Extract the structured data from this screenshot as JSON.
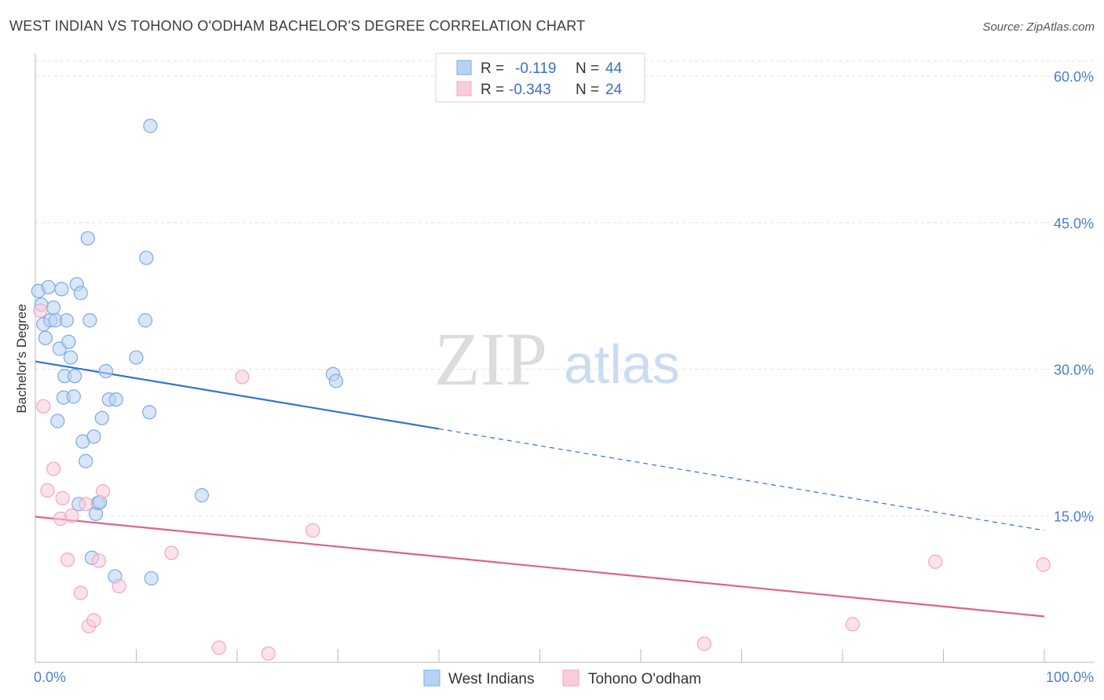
{
  "chart_data": {
    "type": "scatter",
    "title": "WEST INDIAN VS TOHONO O'ODHAM BACHELOR'S DEGREE CORRELATION CHART",
    "source": "Source: ZipAtlas.com",
    "ylabel": "Bachelor's Degree",
    "xlim": [
      0,
      100
    ],
    "ylim": [
      0,
      62
    ],
    "x_tick_labels": [
      {
        "value": 0,
        "label": "0.0%"
      },
      {
        "value": 100,
        "label": "100.0%"
      }
    ],
    "y_tick_labels": [
      {
        "value": 15,
        "label": "15.0%"
      },
      {
        "value": 30,
        "label": "30.0%"
      },
      {
        "value": 45,
        "label": "45.0%"
      },
      {
        "value": 60,
        "label": "60.0%"
      }
    ],
    "grid": true,
    "legend": {
      "placement": "top-center",
      "rows": [
        {
          "r_label": "R =",
          "r_value": "-0.119",
          "n_label": "N =",
          "n_value": "44"
        },
        {
          "r_label": "R =",
          "r_value": "-0.343",
          "n_label": "N =",
          "n_value": "24"
        }
      ]
    },
    "watermark": {
      "zip": "ZIP",
      "atlas": "atlas"
    },
    "series": [
      {
        "name": "West Indians",
        "color": "#7aaae8",
        "fill": "#b9d2f3",
        "trend": {
          "x0": 0,
          "y0": 30.8,
          "x1": 40,
          "y1": 23.9,
          "x_dash_end": 100,
          "y_dash_end": 13.5,
          "color": "#2f73d6"
        },
        "points": [
          [
            0.3,
            38.0
          ],
          [
            0.6,
            36.6
          ],
          [
            0.8,
            34.6
          ],
          [
            1.0,
            33.2
          ],
          [
            1.3,
            38.4
          ],
          [
            1.5,
            35.0
          ],
          [
            1.8,
            36.3
          ],
          [
            2.0,
            35.0
          ],
          [
            2.2,
            24.7
          ],
          [
            2.4,
            32.1
          ],
          [
            2.6,
            38.2
          ],
          [
            2.8,
            27.1
          ],
          [
            2.9,
            29.3
          ],
          [
            3.1,
            35.0
          ],
          [
            3.3,
            32.8
          ],
          [
            3.5,
            31.2
          ],
          [
            3.8,
            27.2
          ],
          [
            3.9,
            29.3
          ],
          [
            4.1,
            38.7
          ],
          [
            4.3,
            16.2
          ],
          [
            4.5,
            37.8
          ],
          [
            4.7,
            22.6
          ],
          [
            5.0,
            20.6
          ],
          [
            5.2,
            43.4
          ],
          [
            5.4,
            35.0
          ],
          [
            5.6,
            10.7
          ],
          [
            5.8,
            23.1
          ],
          [
            6.0,
            15.2
          ],
          [
            6.2,
            16.3
          ],
          [
            6.4,
            16.4
          ],
          [
            6.6,
            25.0
          ],
          [
            7.0,
            29.8
          ],
          [
            7.3,
            26.9
          ],
          [
            7.9,
            8.8
          ],
          [
            8.0,
            26.9
          ],
          [
            10.0,
            31.2
          ],
          [
            11.5,
            8.6
          ],
          [
            10.9,
            35.0
          ],
          [
            11.0,
            41.4
          ],
          [
            11.3,
            25.6
          ],
          [
            11.4,
            54.9
          ],
          [
            16.5,
            17.1
          ],
          [
            29.5,
            29.5
          ],
          [
            29.8,
            28.8
          ]
        ]
      },
      {
        "name": "Tohono O'odham",
        "color": "#f2a5bf",
        "fill": "#f9ccdb",
        "trend": {
          "x0": 0,
          "y0": 14.9,
          "x1": 100,
          "y1": 4.7,
          "color": "#e0608c"
        },
        "points": [
          [
            0.5,
            36.0
          ],
          [
            0.8,
            26.2
          ],
          [
            1.2,
            17.6
          ],
          [
            1.8,
            19.8
          ],
          [
            2.5,
            14.7
          ],
          [
            2.7,
            16.8
          ],
          [
            3.2,
            10.5
          ],
          [
            3.6,
            15.0
          ],
          [
            4.5,
            7.1
          ],
          [
            5.0,
            16.2
          ],
          [
            5.3,
            3.7
          ],
          [
            5.8,
            4.3
          ],
          [
            6.3,
            10.4
          ],
          [
            6.7,
            17.5
          ],
          [
            8.3,
            7.8
          ],
          [
            13.5,
            11.2
          ],
          [
            18.2,
            1.5
          ],
          [
            20.5,
            29.2
          ],
          [
            23.1,
            0.9
          ],
          [
            27.5,
            13.5
          ],
          [
            66.3,
            1.9
          ],
          [
            81.0,
            3.9
          ],
          [
            89.2,
            10.3
          ],
          [
            99.9,
            10.0
          ]
        ]
      }
    ]
  }
}
